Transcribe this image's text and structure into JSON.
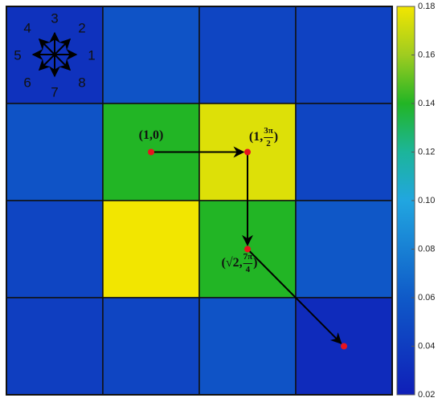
{
  "chart_data": {
    "type": "heatmap",
    "colormap": "parula",
    "z": [
      [
        0.033,
        0.055,
        0.046,
        0.044
      ],
      [
        0.055,
        0.14,
        0.175,
        0.046
      ],
      [
        0.046,
        0.18,
        0.14,
        0.058
      ],
      [
        0.041,
        0.046,
        0.055,
        0.028
      ]
    ],
    "ylim": [
      0.02,
      0.18
    ],
    "yticks": [
      0.02,
      0.04,
      0.06,
      0.08,
      {
        "value": 0.1,
        "label": "0.10"
      },
      0.12,
      0.14,
      0.16,
      0.18
    ],
    "direction_labels": [
      "1",
      "2",
      "3",
      "4",
      "5",
      "6",
      "7",
      "8"
    ],
    "path": [
      {
        "col": 1,
        "row": 1
      },
      {
        "col": 2,
        "row": 1
      },
      {
        "col": 2,
        "row": 2
      },
      {
        "col": 3,
        "row": 3
      }
    ],
    "annotations": [
      {
        "prefix": "(1,0)"
      },
      {
        "prefix": "(1,",
        "numerator": "3π",
        "denominator": "2",
        "suffix": ")"
      },
      {
        "prefix": "(√2,",
        "numerator": "7π",
        "denominator": "4",
        "suffix": ")"
      }
    ]
  }
}
